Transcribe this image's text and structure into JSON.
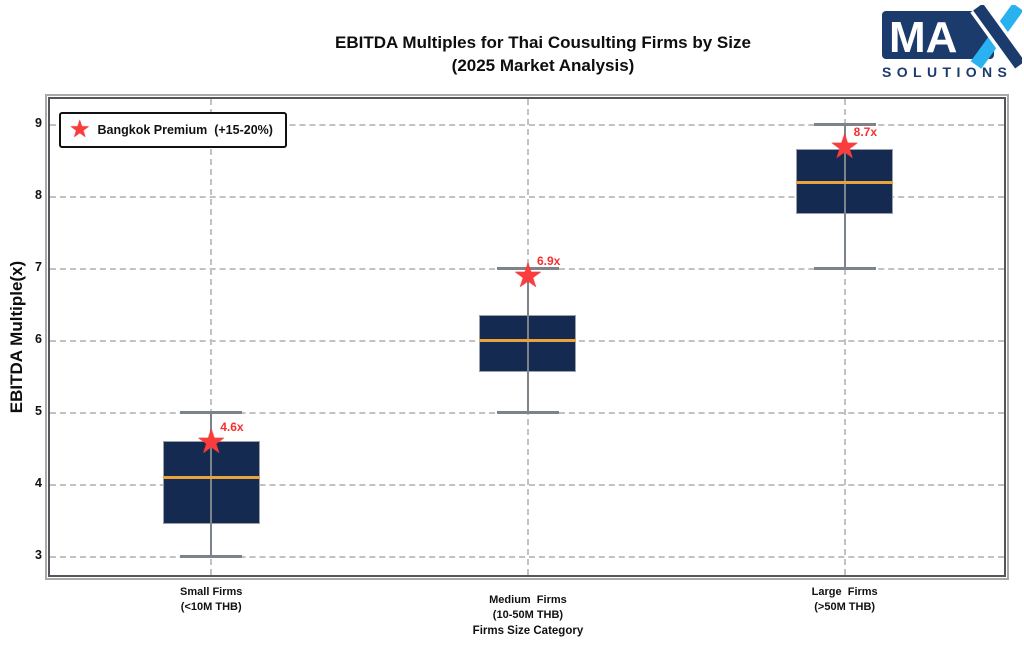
{
  "title": {
    "line1": "EBITDA Multiples for Thai Cousulting Firms by Size",
    "line2": "(2025 Market Analysis)"
  },
  "logo": {
    "ma_text": "MA",
    "subtext": "SOLUTIONS",
    "navy": "#1c3b6d",
    "cyan": "#29b2ef"
  },
  "legend": {
    "star_icon": "star-icon",
    "label": "Bangkok Premium  (+15-20%)"
  },
  "chart_data": {
    "type": "box",
    "title": "EBITDA Multiples for Thai Cousulting Firms by Size (2025 Market Analysis)",
    "xlabel": "Firms Size Category",
    "ylabel": "EBITDA Multiple(x)",
    "ylim": [
      2.71,
      9.38
    ],
    "yticks": [
      3,
      4,
      5,
      6,
      7,
      8,
      9
    ],
    "grid": "dashed horizontal at yticks and dashed vertical at category centers",
    "legend_position": "upper left",
    "categories": [
      {
        "line1": "Small Firms",
        "line2": "(<10M THB)"
      },
      {
        "line1": "Medium  Firms",
        "line2": "(10-50M THB)"
      },
      {
        "line1": "Large  Firms",
        "line2": "(>50M THB)"
      }
    ],
    "series": [
      {
        "name": "Small Firms",
        "whisker_low": 3.0,
        "q1": 3.45,
        "median": 4.1,
        "q3": 4.6,
        "whisker_high": 5.0,
        "bangkok_premium": 4.6,
        "premium_label": "4.6x"
      },
      {
        "name": "Medium Firms",
        "whisker_low": 5.0,
        "q1": 5.55,
        "median": 6.0,
        "q3": 6.35,
        "whisker_high": 7.0,
        "bangkok_premium": 6.9,
        "premium_label": "6.9x"
      },
      {
        "name": "Large Firms",
        "whisker_low": 7.0,
        "q1": 7.75,
        "median": 8.2,
        "q3": 8.65,
        "whisker_high": 9.0,
        "bangkok_premium": 8.7,
        "premium_label": "8.7x"
      }
    ],
    "colors": {
      "box_fill": "#152a50",
      "box_edge": "#9aa0a8",
      "median": "#e8a33c",
      "whisker": "#7d838a",
      "star": "#fa3c3c",
      "annotation": "#f52f2f",
      "grid": "#c2c2c2"
    }
  }
}
